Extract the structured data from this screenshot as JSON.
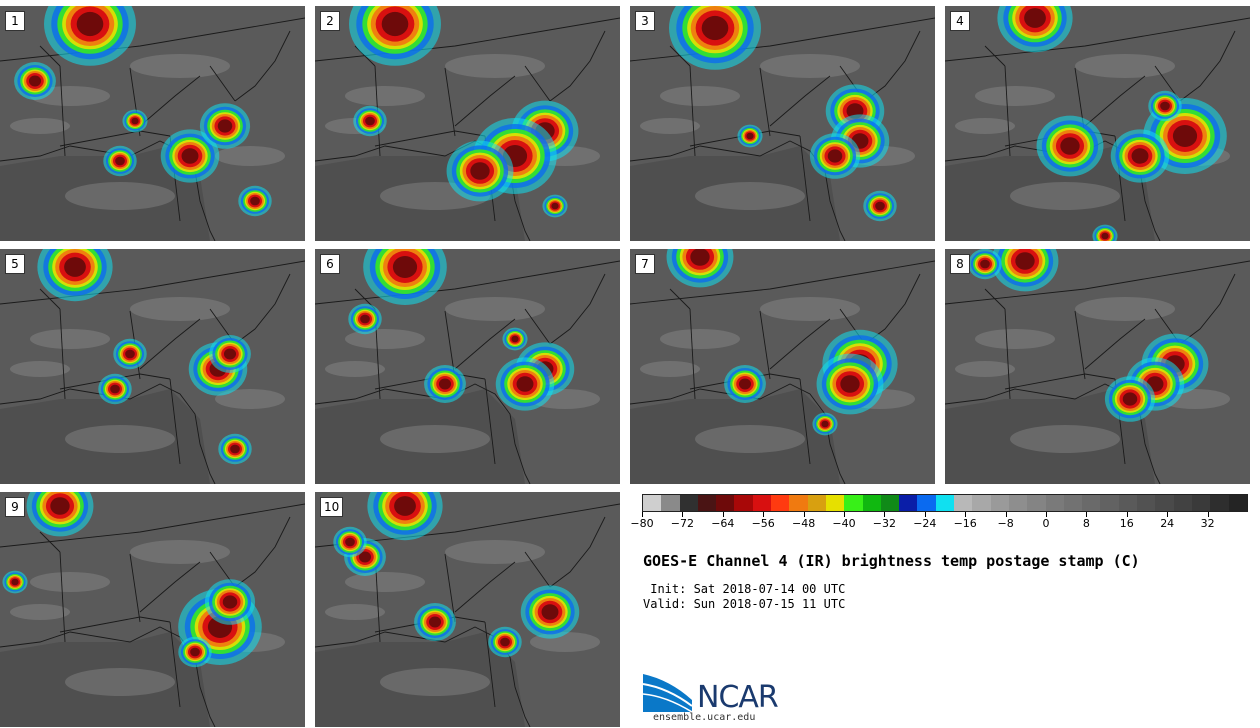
{
  "panels": [
    {
      "label": "1"
    },
    {
      "label": "2"
    },
    {
      "label": "3"
    },
    {
      "label": "4"
    },
    {
      "label": "5"
    },
    {
      "label": "6"
    },
    {
      "label": "7"
    },
    {
      "label": "8"
    },
    {
      "label": "9"
    },
    {
      "label": "10"
    }
  ],
  "colorbar": {
    "colors": [
      "#cfcfcf",
      "#8a8a8a",
      "#303030",
      "#4a1414",
      "#6e0a0a",
      "#a80808",
      "#d81010",
      "#ff3a10",
      "#f07a10",
      "#d8a010",
      "#e6e000",
      "#38f018",
      "#10b810",
      "#108a18",
      "#0a1ea8",
      "#0a6af0",
      "#10e0f0",
      "#b8b8b8",
      "#a8a8a8",
      "#9a9a9a",
      "#8e8e8e",
      "#848484",
      "#7a7a7a",
      "#727272",
      "#6a6a6a",
      "#626262",
      "#5a5a5a",
      "#525252",
      "#4a4a4a",
      "#424242",
      "#3a3a3a",
      "#2e2e2e",
      "#242424"
    ],
    "min": -80,
    "max": 40,
    "tick_values": [
      -80,
      -72,
      -64,
      -56,
      -48,
      -40,
      -32,
      -24,
      -16,
      -8,
      0,
      8,
      16,
      24,
      32
    ],
    "tick_labels": [
      "−80",
      "−72",
      "−64",
      "−56",
      "−48",
      "−40",
      "−32",
      "−24",
      "−16",
      "−8",
      "0",
      "8",
      "16",
      "24",
      "32"
    ]
  },
  "title": "GOES-E Channel 4 (IR) brightness temp postage stamp (C)",
  "init_line": " Init: Sat 2018-07-14 00 UTC",
  "valid_line": "Valid: Sun 2018-07-15 11 UTC",
  "logo": {
    "name": "NCAR",
    "url": "ensemble.ucar.edu"
  },
  "colors": {
    "map_background": "#5a5a5a",
    "border_lines": "#1a1a1a"
  }
}
